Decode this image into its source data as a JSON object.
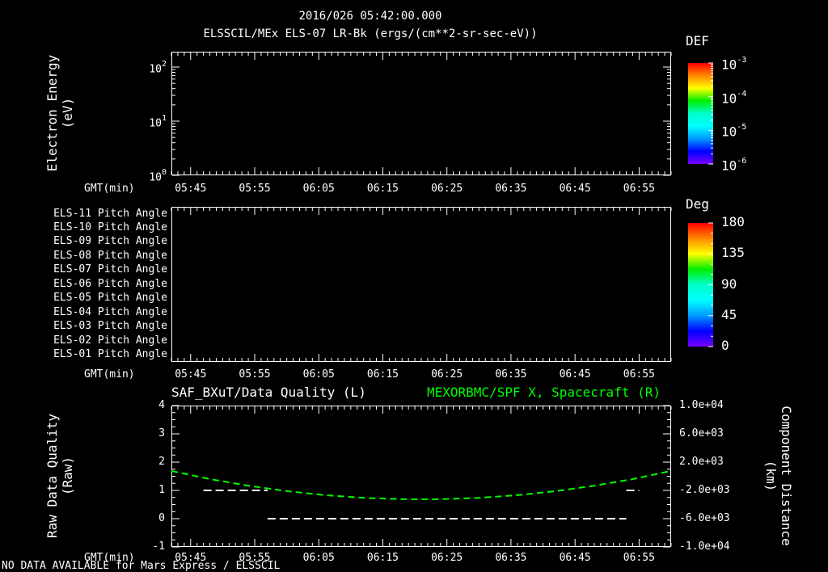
{
  "header": {
    "title": "2016/026 05:42:00.000",
    "subtitle": "ELSSCIL/MEx ELS-07 LR-Bk  (ergs/(cm**2-sr-sec-eV))"
  },
  "time_axis": {
    "label": "GMT(min)",
    "ticks": [
      "05:45",
      "05:55",
      "06:05",
      "06:15",
      "06:25",
      "06:35",
      "06:45",
      "06:55"
    ]
  },
  "panel1": {
    "ylabel_line1": "Electron Energy",
    "ylabel_line2": "(eV)",
    "yticks": [
      {
        "base": "10",
        "exp": "2"
      },
      {
        "base": "10",
        "exp": "1"
      },
      {
        "base": "10",
        "exp": "0"
      }
    ],
    "colorbar": {
      "title": "DEF",
      "ticks": [
        {
          "base": "10",
          "exp": "-3"
        },
        {
          "base": "10",
          "exp": "-4"
        },
        {
          "base": "10",
          "exp": "-5"
        },
        {
          "base": "10",
          "exp": "-6"
        }
      ]
    }
  },
  "panel2": {
    "rows": [
      "ELS-11 Pitch Angle",
      "ELS-10 Pitch Angle",
      "ELS-09 Pitch Angle",
      "ELS-08 Pitch Angle",
      "ELS-07 Pitch Angle",
      "ELS-06 Pitch Angle",
      "ELS-05 Pitch Angle",
      "ELS-04 Pitch Angle",
      "ELS-03 Pitch Angle",
      "ELS-02 Pitch Angle",
      "ELS-01 Pitch Angle"
    ],
    "colorbar": {
      "title": "Deg",
      "ticks": [
        "180",
        "135",
        "90",
        "45",
        "0"
      ]
    }
  },
  "panel3": {
    "title_left": "SAF_BXuT/Data Quality (L)",
    "title_right": "MEXORBMC/SPF X, Spacecraft (R)",
    "ylabel_left_line1": "Raw Data Quality",
    "ylabel_left_line2": "(Raw)",
    "yticks_left": [
      "4",
      "3",
      "2",
      "1",
      "0",
      "-1"
    ],
    "yticks_right": [
      "1.0e+04",
      "6.0e+03",
      "2.0e+03",
      "-2.0e+03",
      "-6.0e+03",
      "-1.0e+04"
    ],
    "ylabel_right_line1": "Component Distance",
    "ylabel_right_line2": "(km)"
  },
  "footer": {
    "no_data_text": "NO DATA AVAILABLE for Mars Express / ELSSCIL"
  },
  "colors": {
    "background": "#000000",
    "foreground": "#ffffff",
    "accent_green": "#00ff00",
    "colormap": [
      "#ff0000",
      "#ff8800",
      "#ffff00",
      "#00ee00",
      "#00ffcc",
      "#00ffff",
      "#0099ff",
      "#0000ff",
      "#7700ff"
    ]
  },
  "chart_data": [
    {
      "type": "heatmap",
      "panel": "electron-energy-spectrogram",
      "title": "ELSSCIL/MEx ELS-07 LR-Bk",
      "units": "ergs/(cm**2-sr-sec-eV)",
      "xlabel": "GMT(min)",
      "x_range": [
        "05:42",
        "07:00"
      ],
      "x_ticks": [
        "05:45",
        "05:55",
        "06:05",
        "06:15",
        "06:25",
        "06:35",
        "06:45",
        "06:55"
      ],
      "ylabel": "Electron Energy (eV)",
      "y_scale": "log",
      "y_range": [
        1,
        200
      ],
      "colorbar_label": "DEF",
      "colorbar_range_log10": [
        -6,
        -3
      ],
      "values": [],
      "note": "no data plotted (blank spectrogram)"
    },
    {
      "type": "heatmap",
      "panel": "pitch-angle-rows",
      "xlabel": "GMT(min)",
      "x_range": [
        "05:42",
        "07:00"
      ],
      "rows_top_to_bottom": [
        "ELS-11",
        "ELS-10",
        "ELS-09",
        "ELS-08",
        "ELS-07",
        "ELS-06",
        "ELS-05",
        "ELS-04",
        "ELS-03",
        "ELS-02",
        "ELS-01"
      ],
      "colorbar_label": "Deg",
      "colorbar_range": [
        0,
        180
      ],
      "values": [],
      "note": "no data plotted (blank panel)"
    },
    {
      "type": "line",
      "panel": "quality-and-distance",
      "xlabel": "GMT(min)",
      "x_range": [
        "05:42",
        "07:00"
      ],
      "ylim_left": [
        -1,
        4
      ],
      "ylim_right": [
        -10000,
        10000
      ],
      "ylabel_left": "Raw Data Quality (Raw)",
      "ylabel_right": "Component Distance (km)",
      "series": [
        {
          "name": "SAF_BXuT/Data Quality (L)",
          "axis": "left",
          "color": "#ffffff",
          "style": "dashed",
          "segments": [
            {
              "x_start": "05:47",
              "x_end": "05:57",
              "value": 1
            },
            {
              "x_start": "05:57",
              "x_end": "06:53",
              "value": 0
            },
            {
              "x_start": "06:53",
              "x_end": "06:55",
              "value": 1
            }
          ]
        },
        {
          "name": "MEXORBMC/SPF X, Spacecraft (R)",
          "axis": "right",
          "color": "#00ff00",
          "style": "dashed",
          "x": [
            "05:42",
            "05:48",
            "05:54",
            "06:00",
            "06:06",
            "06:12",
            "06:18",
            "06:21",
            "06:24",
            "06:30",
            "06:36",
            "06:42",
            "06:48",
            "06:54",
            "07:00"
          ],
          "y": [
            750,
            -400,
            -1340,
            -2100,
            -2670,
            -3050,
            -3240,
            -3260,
            -3240,
            -3050,
            -2670,
            -2100,
            -1340,
            -400,
            750
          ]
        }
      ]
    }
  ]
}
